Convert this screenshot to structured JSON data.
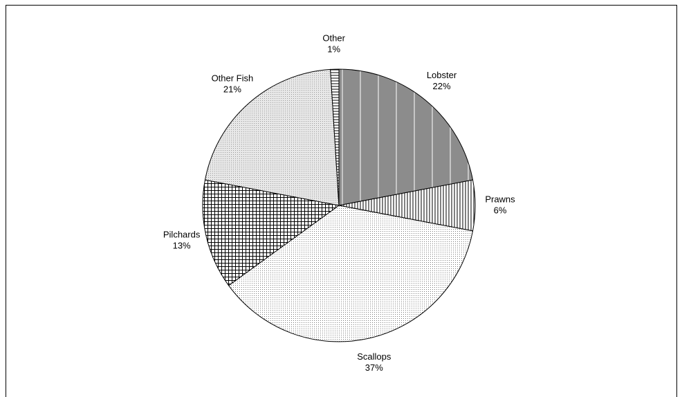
{
  "chart_data": {
    "type": "pie",
    "categories": [
      "Lobster",
      "Prawns",
      "Scallops",
      "Pilchards",
      "Other Fish",
      "Other"
    ],
    "values": [
      22,
      6,
      37,
      13,
      21,
      1
    ],
    "value_labels": [
      "22%",
      "6%",
      "37%",
      "13%",
      "21%",
      "1%"
    ]
  }
}
